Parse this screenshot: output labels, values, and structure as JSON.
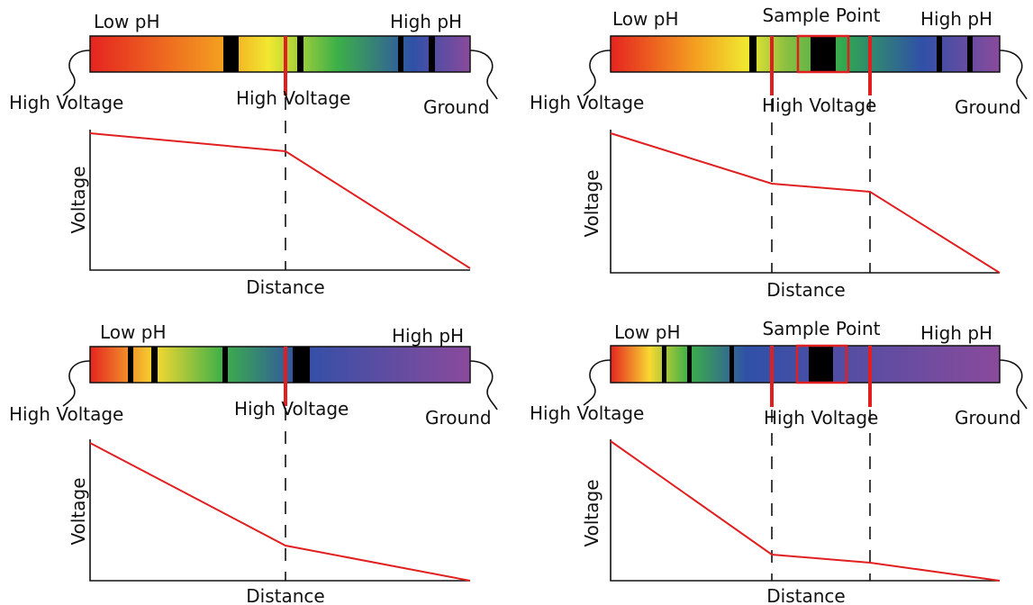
{
  "panels": [
    {
      "low_ph": "Low pH",
      "high_ph": "High pH",
      "left_label": "High Voltage",
      "middle_label": "High Voltage",
      "right_label": "Ground",
      "y_label": "Voltage",
      "x_label": "Distance"
    },
    {
      "low_ph": "Low pH",
      "high_ph": "High pH",
      "sample_label": "Sample Point",
      "left_label": "High Voltage",
      "middle_label": "High Voltage",
      "right_label": "Ground",
      "y_label": "Voltage",
      "x_label": "Distance"
    },
    {
      "low_ph": "Low pH",
      "high_ph": "High pH",
      "left_label": "High Voltage",
      "middle_label": "High Voltage",
      "right_label": "Ground",
      "y_label": "Voltage",
      "x_label": "Distance"
    },
    {
      "low_ph": "Low pH",
      "high_ph": "High pH",
      "sample_label": "Sample Point",
      "left_label": "High Voltage",
      "middle_label": "High Voltage",
      "right_label": "Ground",
      "y_label": "Voltage",
      "x_label": "Distance"
    }
  ]
}
